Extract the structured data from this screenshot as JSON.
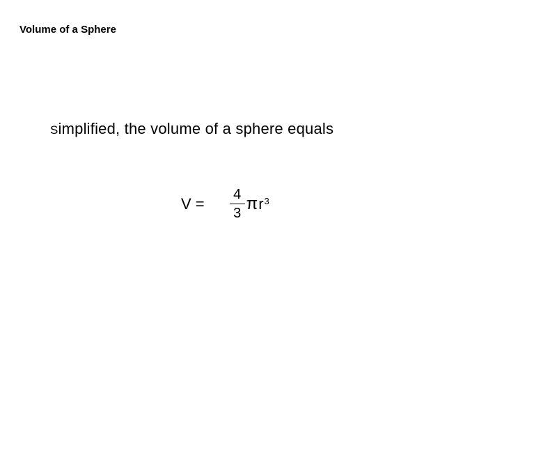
{
  "title": "Volume of a Sphere",
  "intro_lead": "S",
  "intro_rest": "implified, the volume of a sphere equals",
  "formula": {
    "lhs": "V =",
    "numerator": "4",
    "denominator": "3",
    "pi": "π",
    "r": "r",
    "exp": "3"
  },
  "style": {
    "background": "#ffffff",
    "text_color": "#000000",
    "title_fontsize": 15,
    "intro_fontsize": 22,
    "formula_fontsize": 22,
    "frac_fontsize": 20,
    "sup_fontsize": 13
  }
}
